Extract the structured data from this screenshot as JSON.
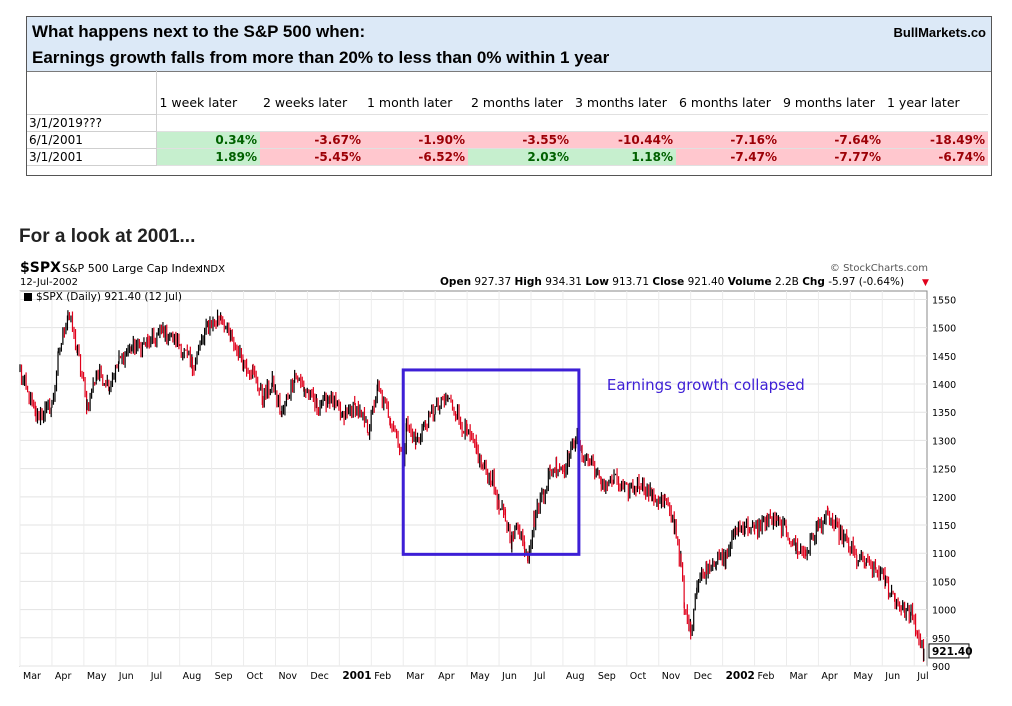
{
  "table": {
    "title_line1": "What happens next to the S&P 500 when:",
    "title_line2": "Earnings growth falls from more than 20% to less than 0% within 1 year",
    "brand": "BullMarkets.co",
    "columns": [
      "1 week later",
      "2 weeks later",
      "1 month later",
      "2 months later",
      "3 months later",
      "6 months later",
      "9 months later",
      "1 year later"
    ],
    "rows": [
      {
        "date": "3/1/2019???",
        "values": [
          "",
          "",
          "",
          "",
          "",
          "",
          "",
          ""
        ]
      },
      {
        "date": "6/1/2001",
        "values": [
          "0.34%",
          "-3.67%",
          "-1.90%",
          "-3.55%",
          "-10.44%",
          "-7.16%",
          "-7.64%",
          "-18.49%"
        ]
      },
      {
        "date": "3/1/2001",
        "values": [
          "1.89%",
          "-5.45%",
          "-6.52%",
          "2.03%",
          "1.18%",
          "-7.47%",
          "-7.77%",
          "-6.74%"
        ]
      }
    ],
    "colors": {
      "pos_bg": "#c6efce",
      "pos_text": "#006100",
      "neg_bg": "#ffc7ce",
      "neg_text": "#9c0006"
    }
  },
  "section_heading": "For a look at 2001...",
  "chart_data": {
    "type": "line",
    "symbol": "$SPX",
    "name": "S&P 500 Large Cap Index",
    "exchange": "INDX",
    "date": "12-Jul-2002",
    "legend": "$SPX (Daily) 921.40 (12 Jul)",
    "watermark": "© StockCharts.com",
    "quote": {
      "open_label": "Open",
      "open": "927.37",
      "high_label": "High",
      "high": "934.31",
      "low_label": "Low",
      "low": "913.71",
      "close_label": "Close",
      "close": "921.40",
      "volume_label": "Volume",
      "volume": "2.2B",
      "chg_label": "Chg",
      "chg": "-5.97 (-0.64%)"
    },
    "last_price_label": "921.40",
    "annotation": "Earnings growth collapsed",
    "ylim": [
      900,
      1565
    ],
    "y_ticks": [
      900,
      950,
      1000,
      1050,
      1100,
      1150,
      1200,
      1250,
      1300,
      1350,
      1400,
      1450,
      1500,
      1550
    ],
    "x_ticks": [
      "Mar",
      "Apr",
      "May",
      "Jun",
      "Jul",
      "Aug",
      "Sep",
      "Oct",
      "Nov",
      "Dec",
      "2001",
      "Feb",
      "Mar",
      "Apr",
      "May",
      "Jun",
      "Jul",
      "Aug",
      "Sep",
      "Oct",
      "Nov",
      "Dec",
      "2002",
      "Feb",
      "Mar",
      "Apr",
      "May",
      "Jun",
      "Jul"
    ],
    "x_start_month": 2,
    "x_end_month": 30.4,
    "highlight_box": {
      "month_start": 14.0,
      "month_end": 19.5,
      "price_low": 1098,
      "price_high": 1425
    },
    "series": [
      {
        "values": [
          [
            2.0,
            1420
          ],
          [
            2.5,
            1340
          ],
          [
            3.0,
            1360
          ],
          [
            3.2,
            1450
          ],
          [
            3.5,
            1527
          ],
          [
            3.8,
            1460
          ],
          [
            4.1,
            1360
          ],
          [
            4.4,
            1420
          ],
          [
            4.8,
            1400
          ],
          [
            5.1,
            1440
          ],
          [
            5.5,
            1465
          ],
          [
            6.0,
            1470
          ],
          [
            6.5,
            1495
          ],
          [
            7.0,
            1470
          ],
          [
            7.4,
            1430
          ],
          [
            7.9,
            1505
          ],
          [
            8.3,
            1520
          ],
          [
            8.6,
            1480
          ],
          [
            9.0,
            1440
          ],
          [
            9.3,
            1420
          ],
          [
            9.6,
            1375
          ],
          [
            9.9,
            1400
          ],
          [
            10.2,
            1345
          ],
          [
            10.6,
            1420
          ],
          [
            10.9,
            1390
          ],
          [
            11.3,
            1360
          ],
          [
            11.7,
            1375
          ],
          [
            12.1,
            1340
          ],
          [
            12.5,
            1360
          ],
          [
            12.9,
            1320
          ],
          [
            13.2,
            1390
          ],
          [
            13.6,
            1340
          ],
          [
            14.0,
            1270
          ],
          [
            14.1,
            1330
          ],
          [
            14.4,
            1295
          ],
          [
            14.7,
            1330
          ],
          [
            15.0,
            1355
          ],
          [
            15.4,
            1375
          ],
          [
            15.7,
            1345
          ],
          [
            16.0,
            1310
          ],
          [
            16.3,
            1280
          ],
          [
            16.5,
            1250
          ],
          [
            16.8,
            1230
          ],
          [
            17.0,
            1180
          ],
          [
            17.2,
            1160
          ],
          [
            17.4,
            1120
          ],
          [
            17.6,
            1150
          ],
          [
            17.8,
            1110
          ],
          [
            17.9,
            1100
          ],
          [
            18.1,
            1160
          ],
          [
            18.4,
            1210
          ],
          [
            18.6,
            1245
          ],
          [
            18.8,
            1255
          ],
          [
            19.0,
            1250
          ],
          [
            19.2,
            1270
          ],
          [
            19.4,
            1310
          ],
          [
            19.6,
            1275
          ],
          [
            19.9,
            1260
          ],
          [
            20.2,
            1220
          ],
          [
            20.6,
            1230
          ],
          [
            21.0,
            1210
          ],
          [
            21.4,
            1225
          ],
          [
            21.8,
            1200
          ],
          [
            22.2,
            1190
          ],
          [
            22.5,
            1150
          ],
          [
            22.7,
            1080
          ],
          [
            22.8,
            1000
          ],
          [
            23.0,
            965
          ],
          [
            23.2,
            1045
          ],
          [
            23.5,
            1075
          ],
          [
            23.8,
            1090
          ],
          [
            24.1,
            1090
          ],
          [
            24.4,
            1140
          ],
          [
            24.7,
            1150
          ],
          [
            25.0,
            1140
          ],
          [
            25.4,
            1160
          ],
          [
            25.7,
            1155
          ],
          [
            26.0,
            1140
          ],
          [
            26.3,
            1110
          ],
          [
            26.6,
            1100
          ],
          [
            27.0,
            1150
          ],
          [
            27.3,
            1165
          ],
          [
            27.6,
            1140
          ],
          [
            27.9,
            1120
          ],
          [
            28.2,
            1090
          ],
          [
            28.5,
            1080
          ],
          [
            28.8,
            1070
          ],
          [
            29.1,
            1050
          ],
          [
            29.4,
            1020
          ],
          [
            29.7,
            1000
          ],
          [
            29.9,
            990
          ],
          [
            30.1,
            960
          ],
          [
            30.3,
            921.4
          ]
        ]
      }
    ],
    "colors": {
      "up": "#000000",
      "down": "#e0001b",
      "box": "#3d1fd6",
      "annotation": "#3d1fd6"
    }
  }
}
